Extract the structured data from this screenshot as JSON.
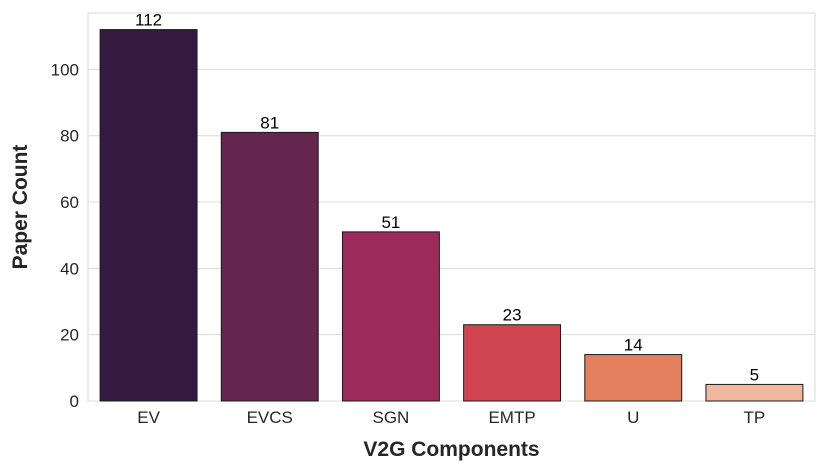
{
  "chart_data": {
    "type": "bar",
    "title": "",
    "xlabel": "V2G Components",
    "ylabel": "Paper Count",
    "categories": [
      "EV",
      "EVCS",
      "SGN",
      "EMTP",
      "U",
      "TP"
    ],
    "values": [
      112,
      81,
      51,
      23,
      14,
      5
    ],
    "colors": [
      "#35193e",
      "#64264f",
      "#9c2a5a",
      "#cf4550",
      "#e3815e",
      "#efb89f"
    ],
    "ylim": [
      0,
      117
    ],
    "yticks": [
      0,
      20,
      40,
      60,
      80,
      100
    ],
    "grid": true,
    "legend": "none",
    "show_value_labels": true
  }
}
